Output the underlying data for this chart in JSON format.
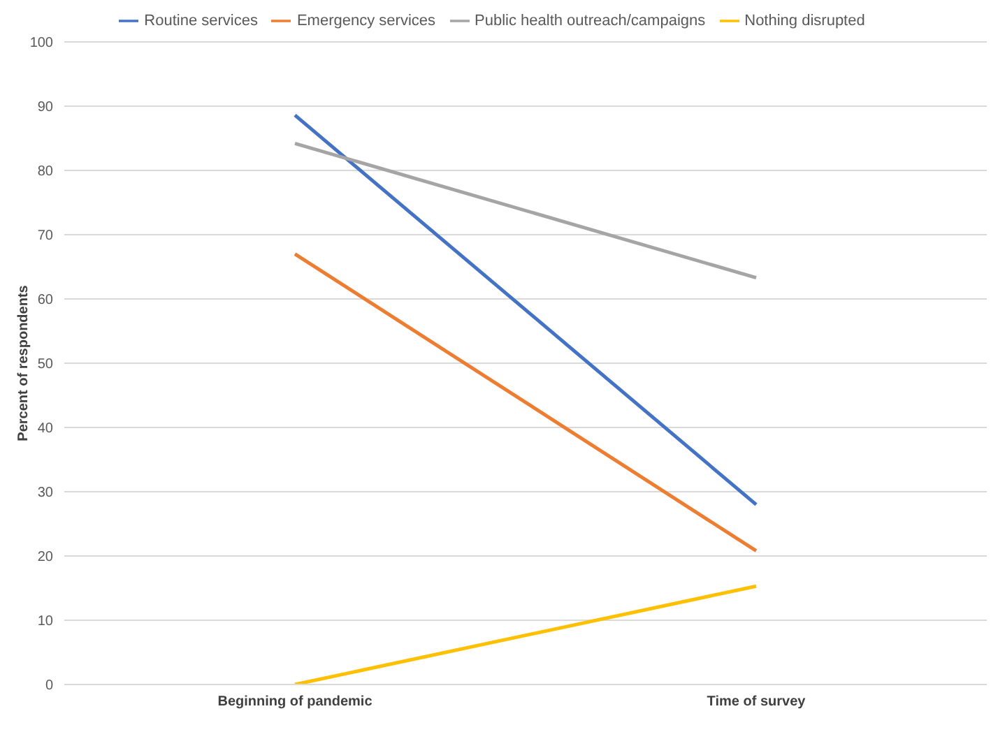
{
  "chart_data": {
    "type": "line",
    "ylabel": "Percent of respondents",
    "categories": [
      "Beginning of pandemic",
      "Time of survey"
    ],
    "series": [
      {
        "name": "Routine services",
        "color": "#4472c4",
        "values": [
          88.6,
          28
        ]
      },
      {
        "name": "Emergency services",
        "color": "#ed7d31",
        "values": [
          67,
          20.8
        ]
      },
      {
        "name": "Public health outreach/campaigns",
        "color": "#a5a5a5",
        "values": [
          84.2,
          63.3
        ]
      },
      {
        "name": "Nothing disrupted",
        "color": "#ffc000",
        "values": [
          0,
          15.3
        ]
      }
    ],
    "ylim": [
      0,
      100
    ],
    "yticks": [
      0,
      10,
      20,
      30,
      40,
      50,
      60,
      70,
      80,
      90,
      100
    ],
    "grid": "y",
    "legend": "top",
    "marker": "none",
    "line_style": "solid"
  }
}
